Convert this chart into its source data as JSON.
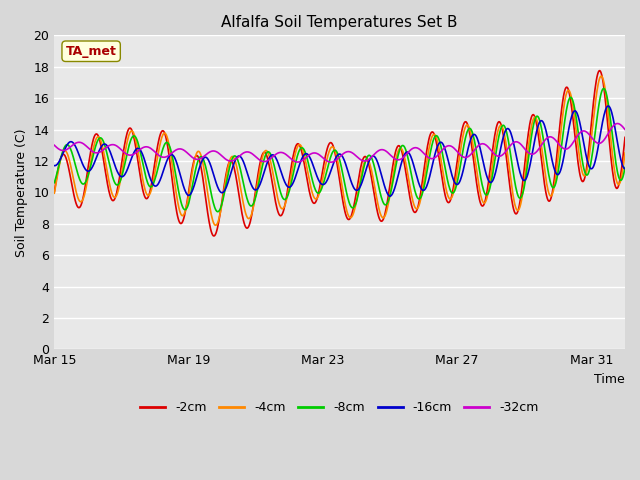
{
  "title": "Alfalfa Soil Temperatures Set B",
  "xlabel": "Time",
  "ylabel": "Soil Temperature (C)",
  "ylim": [
    0,
    20
  ],
  "yticks": [
    0,
    2,
    4,
    6,
    8,
    10,
    12,
    14,
    16,
    18,
    20
  ],
  "xtick_labels": [
    "Mar 15",
    "Mar 19",
    "Mar 23",
    "Mar 27",
    "Mar 31"
  ],
  "xtick_positions": [
    0,
    4,
    8,
    12,
    16
  ],
  "fig_facecolor": "#d8d8d8",
  "plot_facecolor": "#e8e8e8",
  "grid_color": "#ffffff",
  "annotation_text": "TA_met",
  "annotation_color": "#aa0000",
  "annotation_bg": "#ffffdd",
  "annotation_border": "#888800",
  "series": {
    "-2cm": {
      "color": "#dd0000",
      "linewidth": 1.2
    },
    "-4cm": {
      "color": "#ff8800",
      "linewidth": 1.2
    },
    "-8cm": {
      "color": "#00cc00",
      "linewidth": 1.2
    },
    "-16cm": {
      "color": "#0000cc",
      "linewidth": 1.2
    },
    "-32cm": {
      "color": "#cc00cc",
      "linewidth": 1.2
    }
  },
  "legend_order": [
    "-2cm",
    "-4cm",
    "-8cm",
    "-16cm",
    "-32cm"
  ]
}
